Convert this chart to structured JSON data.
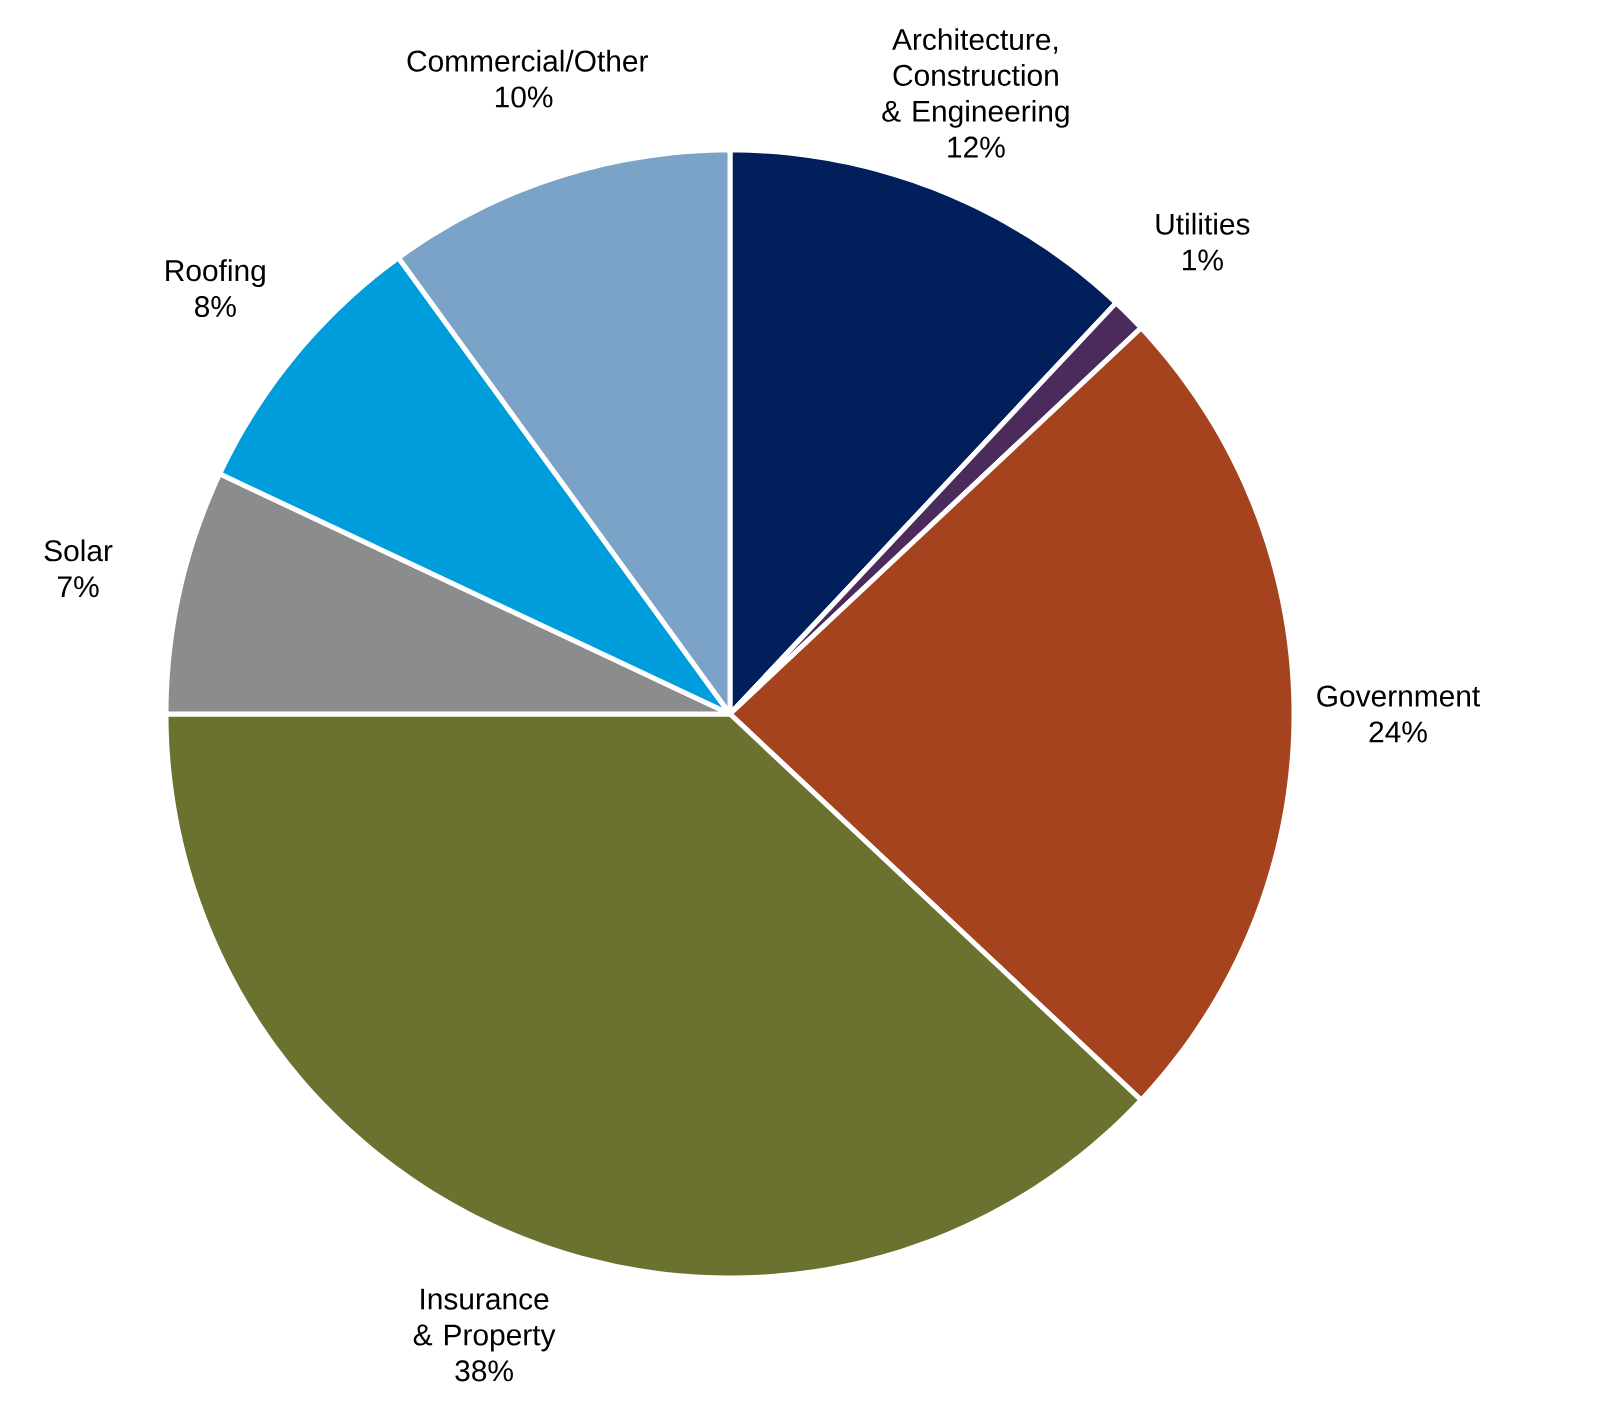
{
  "chart_data": {
    "type": "pie",
    "categories": [
      "Architecture, Construction & Engineering",
      "Utilities",
      "Government",
      "Insurance & Property",
      "Solar",
      "Roofing",
      "Commercial/Other"
    ],
    "values": [
      12,
      1,
      24,
      38,
      7,
      8,
      10
    ],
    "value_labels": [
      "12%",
      "1%",
      "24%",
      "38%",
      "7%",
      "8%",
      "10%"
    ],
    "colors": [
      "#001f5b",
      "#4a2b5c",
      "#a5431e",
      "#6b722f",
      "#8a8c8e",
      "#009ddc",
      "#7ba2c7"
    ]
  }
}
